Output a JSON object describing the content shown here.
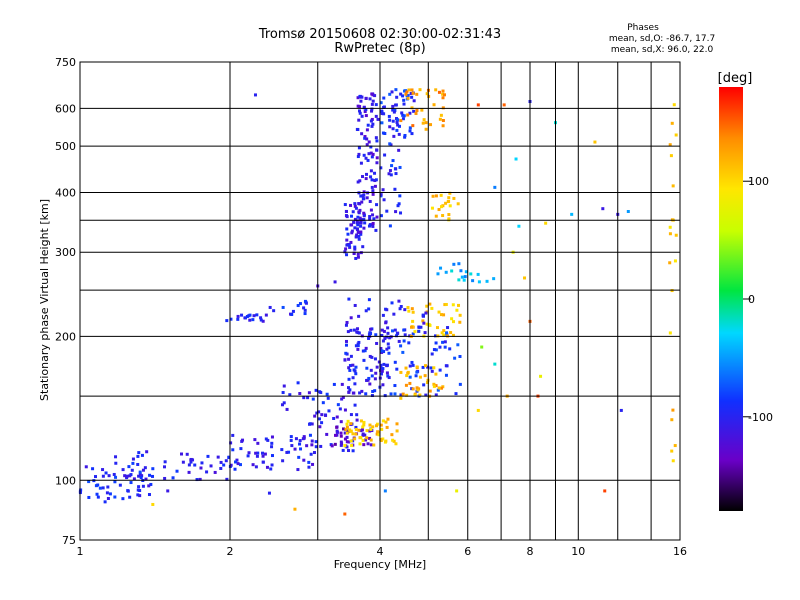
{
  "chart_data": {
    "type": "scatter",
    "title": "Tromsø 20150608 02:30:00-02:31:43",
    "subtitle": "RwPretec (8p)",
    "xlabel": "Frequency [MHz]",
    "ylabel": "Stationary phase Virtual Height [km]",
    "x_scale": "log",
    "y_scale": "log",
    "xlim": [
      1,
      16
    ],
    "ylim": [
      75,
      750
    ],
    "x_ticks": [
      1,
      2,
      4,
      6,
      8,
      10,
      16
    ],
    "x_minor_ticks": [
      3,
      5,
      7,
      9,
      12,
      14
    ],
    "y_ticks": [
      75,
      100,
      200,
      300,
      400,
      500,
      600,
      750
    ],
    "y_minor_ticks": [
      150,
      250,
      350
    ],
    "grid": true,
    "legend": {
      "title": "Phases",
      "lines": [
        "mean, sd,O: -86.7, 17.7",
        "mean, sd,X:  96.0, 22.0"
      ],
      "position": "top-right"
    },
    "colorbar": {
      "label": "[deg]",
      "range": [
        -180,
        180
      ],
      "ticks": [
        100,
        0,
        -100
      ]
    },
    "point_clusters": [
      {
        "x_range": [
          1.0,
          1.4
        ],
        "y_range": [
          90,
          108
        ],
        "phase": -95,
        "count": 55
      },
      {
        "x_range": [
          1.1,
          2.0
        ],
        "y_range": [
          100,
          115
        ],
        "phase": -100,
        "count": 50
      },
      {
        "x_range": [
          2.0,
          3.0
        ],
        "y_range": [
          105,
          125
        ],
        "phase": -100,
        "count": 60
      },
      {
        "x_range": [
          2.8,
          3.6
        ],
        "y_range": [
          115,
          140
        ],
        "phase": -110,
        "count": 45
      },
      {
        "x_range": [
          3.2,
          3.9
        ],
        "y_range": [
          118,
          130
        ],
        "phase": -130,
        "count": 30
      },
      {
        "x_range": [
          3.4,
          4.4
        ],
        "y_range": [
          118,
          135
        ],
        "phase": 110,
        "count": 55
      },
      {
        "x_range": [
          2.5,
          3.6
        ],
        "y_range": [
          140,
          160
        ],
        "phase": -100,
        "count": 30
      },
      {
        "x_range": [
          3.4,
          4.2
        ],
        "y_range": [
          150,
          210
        ],
        "phase": -100,
        "count": 90
      },
      {
        "x_range": [
          4.0,
          5.8
        ],
        "y_range": [
          150,
          210
        ],
        "phase": -90,
        "count": 70
      },
      {
        "x_range": [
          4.4,
          5.4
        ],
        "y_range": [
          148,
          175
        ],
        "phase": 120,
        "count": 35
      },
      {
        "x_range": [
          4.5,
          5.8
        ],
        "y_range": [
          200,
          235
        ],
        "phase": 110,
        "count": 40
      },
      {
        "x_range": [
          3.4,
          5.0
        ],
        "y_range": [
          200,
          240
        ],
        "phase": -100,
        "count": 35
      },
      {
        "x_range": [
          1.95,
          2.4
        ],
        "y_range": [
          215,
          222
        ],
        "phase": -100,
        "count": 18
      },
      {
        "x_range": [
          2.4,
          2.9
        ],
        "y_range": [
          222,
          238
        ],
        "phase": -95,
        "count": 14
      },
      {
        "x_range": [
          3.4,
          3.7
        ],
        "y_range": [
          290,
          380
        ],
        "phase": -105,
        "count": 60
      },
      {
        "x_range": [
          3.6,
          3.95
        ],
        "y_range": [
          330,
          650
        ],
        "phase": -110,
        "count": 110
      },
      {
        "x_range": [
          3.9,
          4.4
        ],
        "y_range": [
          340,
          600
        ],
        "phase": -95,
        "count": 45
      },
      {
        "x_range": [
          4.0,
          4.7
        ],
        "y_range": [
          520,
          660
        ],
        "phase": -90,
        "count": 45
      },
      {
        "x_range": [
          4.4,
          5.4
        ],
        "y_range": [
          540,
          660
        ],
        "phase": 130,
        "count": 35
      },
      {
        "x_range": [
          5.0,
          5.8
        ],
        "y_range": [
          350,
          400
        ],
        "phase": 110,
        "count": 20
      },
      {
        "x_range": [
          5.2,
          6.8
        ],
        "y_range": [
          260,
          285
        ],
        "phase": -40,
        "count": 18
      },
      {
        "x_range": [
          15.2,
          15.8
        ],
        "y_range": [
          100,
          620
        ],
        "phase": 110,
        "count": 20
      }
    ],
    "scattered_points": [
      {
        "x": 2.25,
        "y": 640,
        "phase": -100
      },
      {
        "x": 6.3,
        "y": 610,
        "phase": 160
      },
      {
        "x": 7.1,
        "y": 610,
        "phase": 150
      },
      {
        "x": 8.0,
        "y": 620,
        "phase": -100
      },
      {
        "x": 9.0,
        "y": 560,
        "phase": -20
      },
      {
        "x": 10.8,
        "y": 510,
        "phase": 110
      },
      {
        "x": 7.5,
        "y": 470,
        "phase": -30
      },
      {
        "x": 6.8,
        "y": 410,
        "phase": -60
      },
      {
        "x": 9.7,
        "y": 360,
        "phase": -40
      },
      {
        "x": 11.2,
        "y": 370,
        "phase": -110
      },
      {
        "x": 12.0,
        "y": 360,
        "phase": -110
      },
      {
        "x": 12.6,
        "y": 365,
        "phase": -50
      },
      {
        "x": 7.6,
        "y": 340,
        "phase": -30
      },
      {
        "x": 8.6,
        "y": 345,
        "phase": 100
      },
      {
        "x": 7.8,
        "y": 265,
        "phase": 110
      },
      {
        "x": 7.4,
        "y": 300,
        "phase": 80
      },
      {
        "x": 3.25,
        "y": 260,
        "phase": -110
      },
      {
        "x": 3.0,
        "y": 255,
        "phase": -120
      },
      {
        "x": 8.0,
        "y": 215,
        "phase": 150
      },
      {
        "x": 6.4,
        "y": 190,
        "phase": 40
      },
      {
        "x": 6.8,
        "y": 175,
        "phase": -20
      },
      {
        "x": 8.3,
        "y": 150,
        "phase": 160
      },
      {
        "x": 8.4,
        "y": 165,
        "phase": 80
      },
      {
        "x": 6.3,
        "y": 140,
        "phase": 100
      },
      {
        "x": 7.2,
        "y": 150,
        "phase": 120
      },
      {
        "x": 12.2,
        "y": 140,
        "phase": -100
      },
      {
        "x": 11.3,
        "y": 95,
        "phase": 160
      },
      {
        "x": 5.7,
        "y": 95,
        "phase": 80
      },
      {
        "x": 4.1,
        "y": 95,
        "phase": -60
      },
      {
        "x": 3.4,
        "y": 85,
        "phase": 150
      },
      {
        "x": 2.7,
        "y": 87,
        "phase": 120
      },
      {
        "x": 2.4,
        "y": 94,
        "phase": -100
      },
      {
        "x": 1.4,
        "y": 89,
        "phase": 100
      },
      {
        "x": 1.5,
        "y": 95,
        "phase": -110
      }
    ]
  }
}
